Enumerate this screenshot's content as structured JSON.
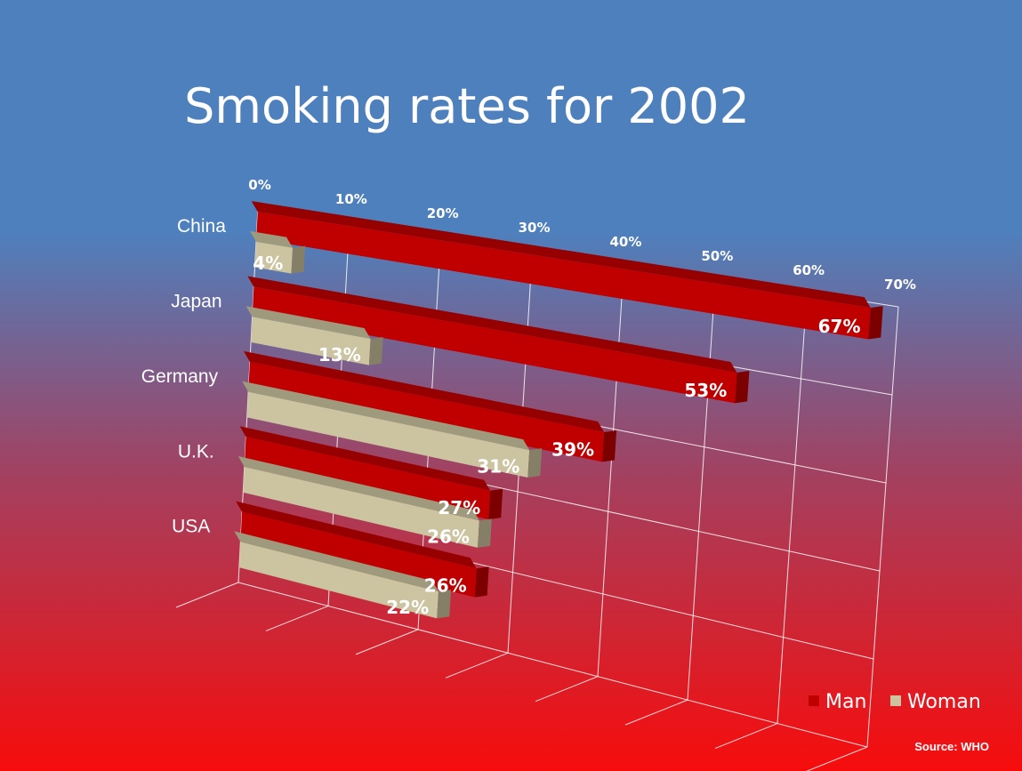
{
  "colors": {
    "background_top": "#4e80bd",
    "background_mid": "#a4405f",
    "background_bottom": "#f70c0c",
    "man": "#c00000",
    "woman": "#ccc4a0"
  },
  "chart_data": {
    "type": "bar",
    "orientation": "horizontal",
    "style": "3d",
    "title": "Smoking rates for 2002",
    "categories": [
      "China",
      "Japan",
      "Germany",
      "U.K.",
      "USA"
    ],
    "series": [
      {
        "name": "Man",
        "values": [
          67,
          53,
          39,
          27,
          26
        ],
        "labels": [
          "67%",
          "53%",
          "39%",
          "27%",
          "26%"
        ]
      },
      {
        "name": "Woman",
        "values": [
          4,
          13,
          31,
          26,
          22
        ],
        "labels": [
          "4%",
          "13%",
          "31%",
          "26%",
          "22%"
        ]
      }
    ],
    "xlim": [
      0,
      70
    ],
    "ticks": [
      "0%",
      "10%",
      "20%",
      "30%",
      "40%",
      "50%",
      "60%",
      "70%"
    ],
    "grid": true,
    "legend_position": "bottom-right",
    "source": "Source: WHO"
  }
}
